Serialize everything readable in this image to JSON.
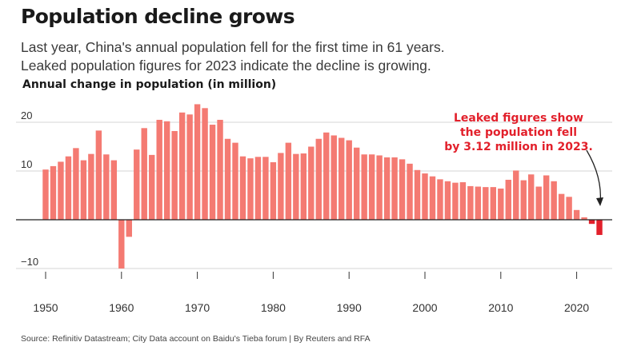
{
  "header": {
    "title": "Population decline grows",
    "subtitle_line1": "Last year, China's annual population fell for the first time in 61 years.",
    "subtitle_line2": "Leaked population figures for 2023 indicate the decline is growing."
  },
  "footer": {
    "source": "Source: Refinitiv Datastream; City Data account on Baidu's Tieba forum | By Reuters and RFA"
  },
  "colors": {
    "bar": "#f47a72",
    "highlight": "#e2202b",
    "grid": "#d6d6d6",
    "axis": "#222222",
    "text": "#333333"
  },
  "chart_data": {
    "type": "bar",
    "title": "Population decline grows",
    "ylabel": "Annual change in population (in million)",
    "xlabel": "",
    "ylim": [
      -12,
      24
    ],
    "xlim": [
      1948,
      2025
    ],
    "grid": true,
    "yticks": [
      20,
      10,
      -10
    ],
    "ytick_labels": [
      "20",
      "10",
      "−10"
    ],
    "xticks": [
      1950,
      1960,
      1970,
      1980,
      1990,
      2000,
      2010,
      2020
    ],
    "xtick_labels": [
      "1950",
      "1960",
      "1970",
      "1980",
      "1990",
      "2000",
      "2010",
      "2020"
    ],
    "years": [
      1950,
      1951,
      1952,
      1953,
      1954,
      1955,
      1956,
      1957,
      1958,
      1959,
      1960,
      1961,
      1962,
      1963,
      1964,
      1965,
      1966,
      1967,
      1968,
      1969,
      1970,
      1971,
      1972,
      1973,
      1974,
      1975,
      1976,
      1977,
      1978,
      1979,
      1980,
      1981,
      1982,
      1983,
      1984,
      1985,
      1986,
      1987,
      1988,
      1989,
      1990,
      1991,
      1992,
      1993,
      1994,
      1995,
      1996,
      1997,
      1998,
      1999,
      2000,
      2001,
      2002,
      2003,
      2004,
      2005,
      2006,
      2007,
      2008,
      2009,
      2010,
      2011,
      2012,
      2013,
      2014,
      2015,
      2016,
      2017,
      2018,
      2019,
      2020,
      2021,
      2022,
      2023
    ],
    "values": [
      10.3,
      11.0,
      11.9,
      13.0,
      14.7,
      12.2,
      13.5,
      18.3,
      13.4,
      12.2,
      -10.0,
      -3.5,
      14.4,
      18.8,
      13.3,
      20.5,
      20.2,
      18.2,
      22.0,
      21.6,
      23.7,
      22.9,
      19.5,
      20.5,
      16.6,
      15.8,
      13.0,
      12.6,
      12.9,
      12.9,
      11.8,
      13.7,
      15.8,
      13.5,
      13.6,
      15.0,
      16.6,
      17.9,
      17.3,
      16.8,
      16.3,
      14.8,
      13.4,
      13.4,
      13.2,
      12.8,
      12.8,
      12.4,
      11.5,
      10.2,
      9.5,
      8.9,
      8.3,
      7.9,
      7.6,
      7.7,
      6.9,
      6.8,
      6.7,
      6.7,
      6.4,
      8.2,
      10.1,
      8.1,
      9.3,
      6.8,
      9.1,
      7.9,
      5.3,
      4.7,
      2.0,
      0.5,
      -0.85,
      -3.12
    ],
    "highlight_from_year": 2022,
    "annotation": {
      "line1": "Leaked figures show",
      "line2": "the population fell",
      "line3": "by 3.12 million in 2023.",
      "target_year": 2023
    }
  }
}
